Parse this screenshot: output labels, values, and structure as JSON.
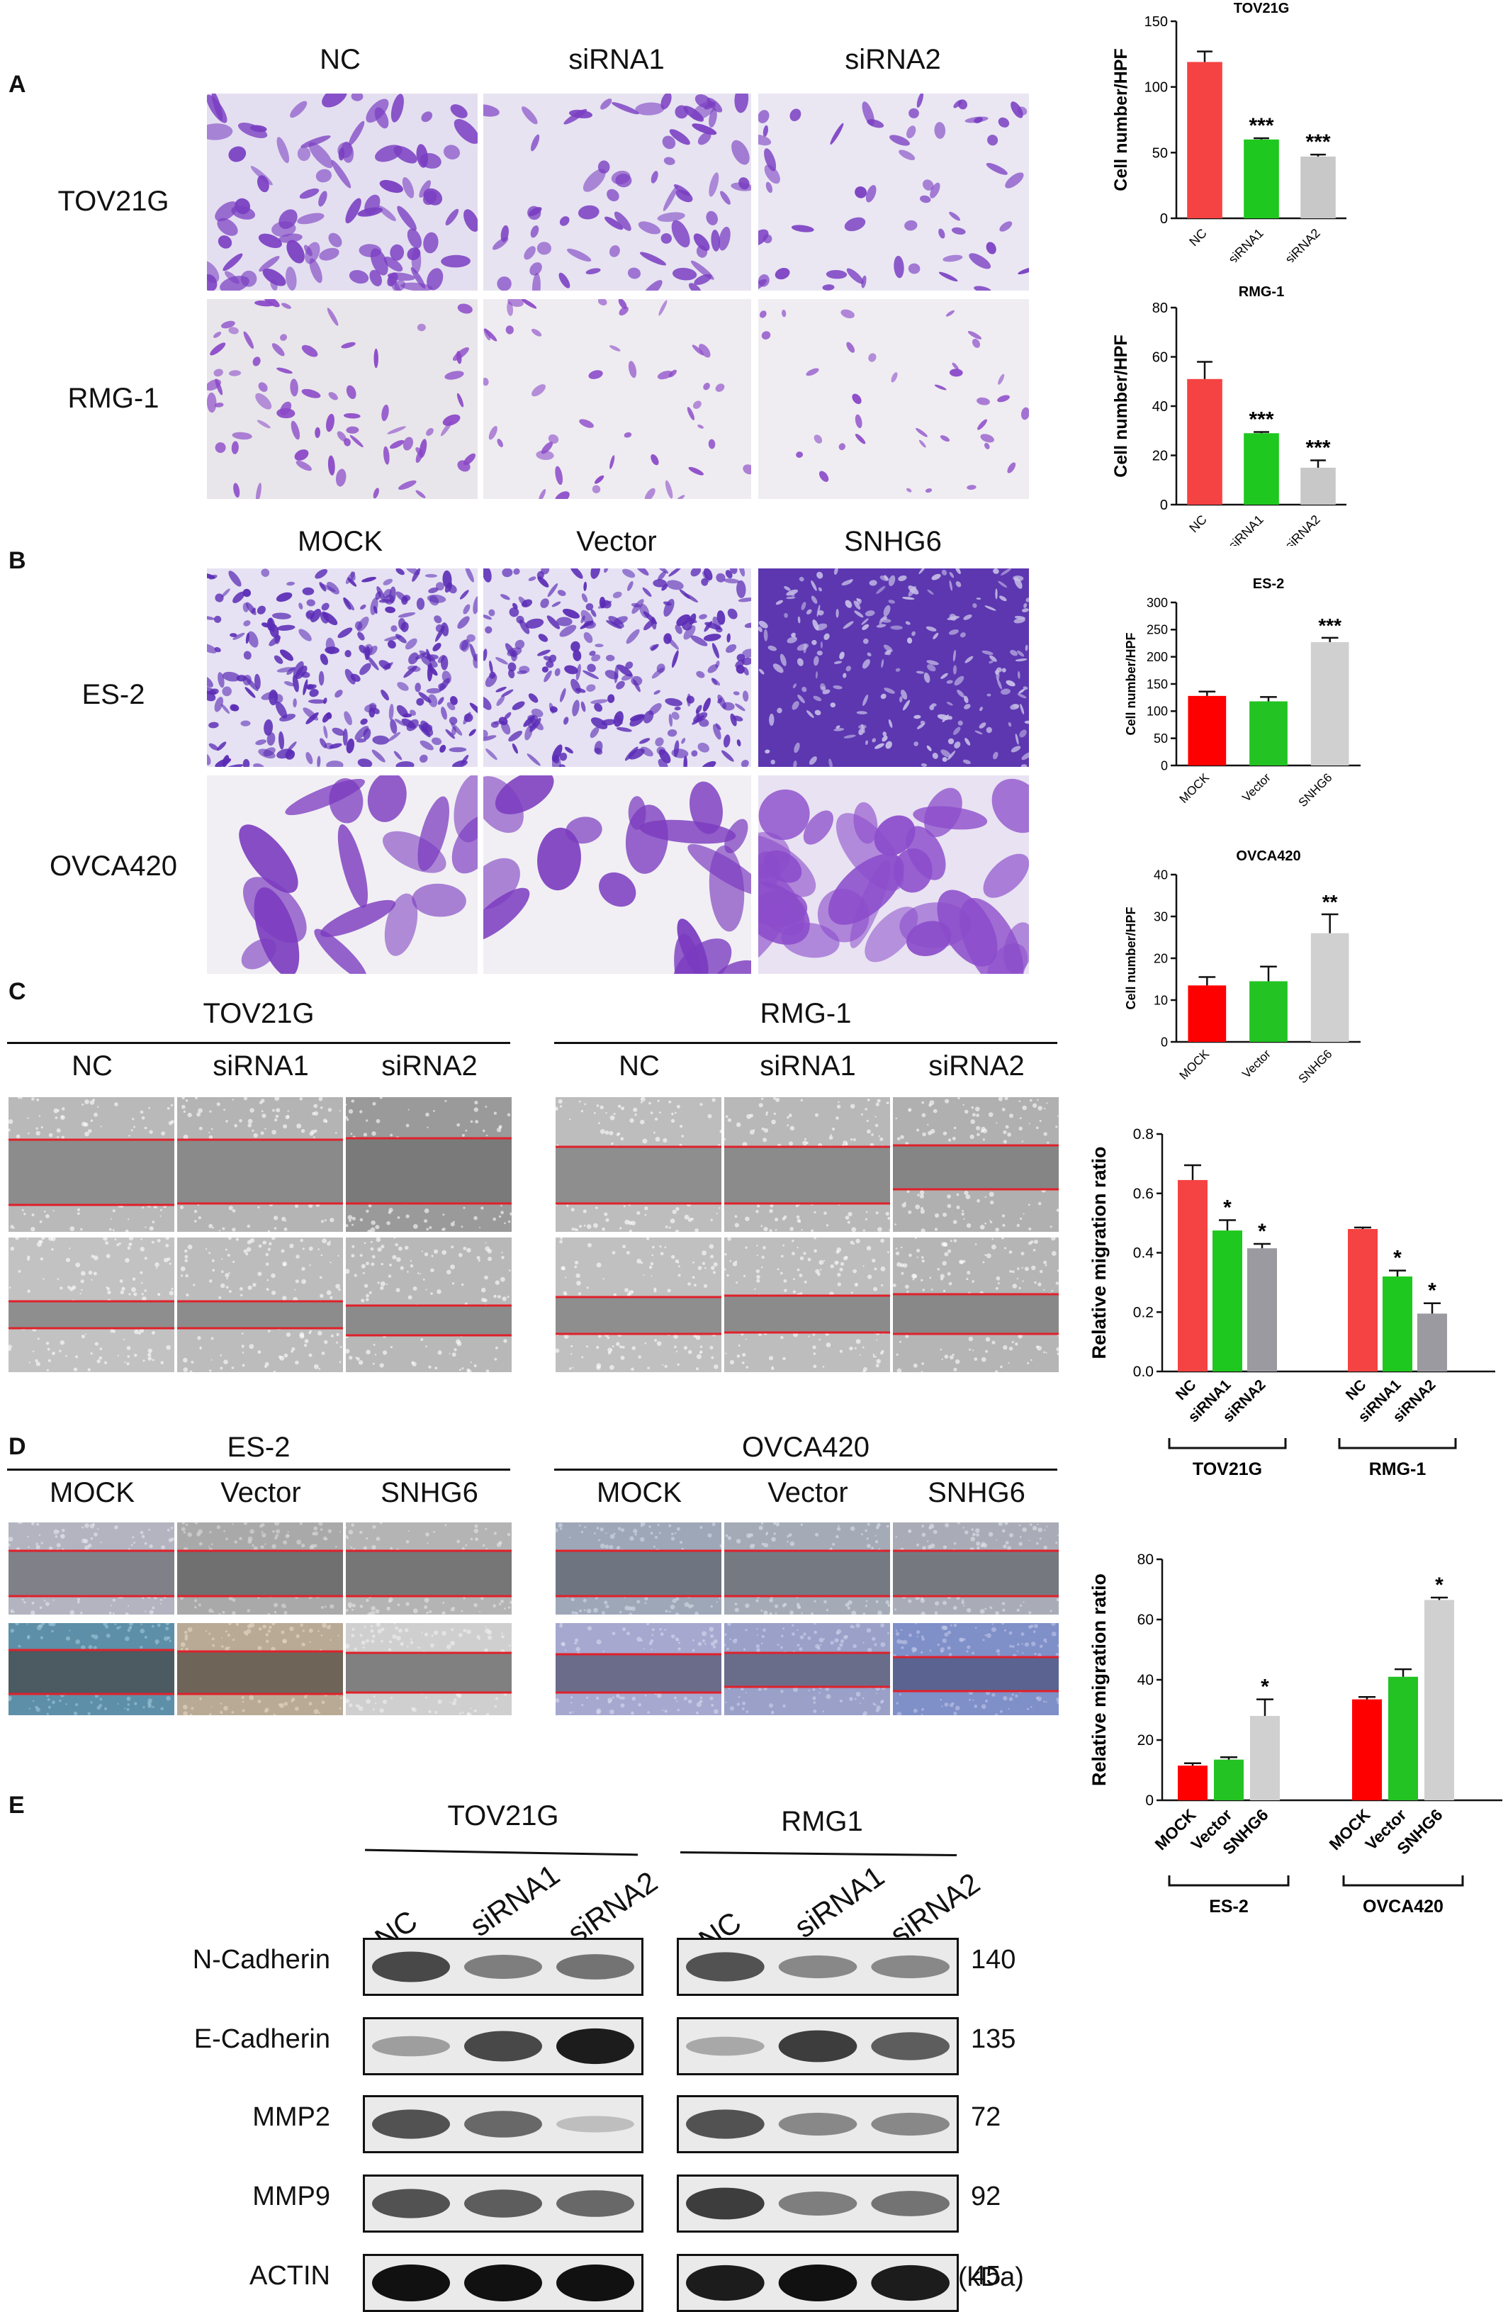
{
  "panels": {
    "a": "A",
    "b": "B",
    "c": "C",
    "d": "D",
    "e": "E"
  },
  "panelA": {
    "cols": [
      "NC",
      "siRNA1",
      "siRNA2"
    ],
    "rows": [
      "TOV21G",
      "RMG-1"
    ]
  },
  "panelB": {
    "cols": [
      "MOCK",
      "Vector",
      "SNHG6"
    ],
    "rows": [
      "ES-2",
      "OVCA420"
    ]
  },
  "panelC": {
    "groups": [
      {
        "title": "TOV21G",
        "cols": [
          "NC",
          "siRNA1",
          "siRNA2"
        ]
      },
      {
        "title": "RMG-1",
        "cols": [
          "NC",
          "siRNA1",
          "siRNA2"
        ]
      }
    ]
  },
  "panelD": {
    "groups": [
      {
        "title": "ES-2",
        "cols": [
          "MOCK",
          "Vector",
          "SNHG6"
        ]
      },
      {
        "title": "OVCA420",
        "cols": [
          "MOCK",
          "Vector",
          "SNHG6"
        ]
      }
    ]
  },
  "panelE": {
    "groups": [
      {
        "title": "TOV21G",
        "lanes": [
          "NC",
          "siRNA1",
          "siRNA2"
        ]
      },
      {
        "title": "RMG1",
        "lanes": [
          "NC",
          "siRNA1",
          "siRNA2"
        ]
      }
    ],
    "proteins": [
      "N-Cadherin",
      "E-Cadherin",
      "MMP2",
      "MMP9",
      "ACTIN"
    ],
    "sizes": [
      "140",
      "135",
      "72",
      "92",
      "45"
    ],
    "unit": "(kDa)"
  },
  "colors": {
    "red": "#f54242",
    "green": "#1ec81e",
    "gray": "#c8c8c8",
    "darkgray": "#9a9aa0",
    "purple": "#7b3bbf"
  },
  "chart_data": [
    {
      "id": "tov21g-transwell",
      "type": "bar",
      "title": "TOV21G",
      "ylabel": "Cell number/HPF",
      "categories": [
        "NC",
        "siRNA1",
        "siRNA2"
      ],
      "values": [
        119,
        60,
        47
      ],
      "errors": [
        8,
        1,
        1.5
      ],
      "ylim": [
        0,
        150
      ],
      "yticks": [
        0,
        50,
        100,
        150
      ],
      "annotations": [
        "",
        "***",
        "***"
      ],
      "colors": [
        "#f54242",
        "#1ec81e",
        "#c8c8c8"
      ]
    },
    {
      "id": "rmg1-transwell",
      "type": "bar",
      "title": "RMG-1",
      "ylabel": "Cell number/HPF",
      "categories": [
        "NC",
        "siRNA1",
        "siRNA2"
      ],
      "values": [
        51,
        29,
        15
      ],
      "errors": [
        7,
        0.5,
        3
      ],
      "ylim": [
        0,
        80
      ],
      "yticks": [
        0,
        20,
        40,
        60,
        80
      ],
      "annotations": [
        "",
        "***",
        "***"
      ],
      "colors": [
        "#f54242",
        "#1ec81e",
        "#c8c8c8"
      ]
    },
    {
      "id": "es2-transwell",
      "type": "bar",
      "title": "ES-2",
      "ylabel": "Cell number/HPF",
      "categories": [
        "MOCK",
        "Vector",
        "SNHG6"
      ],
      "values": [
        128,
        118,
        227
      ],
      "errors": [
        8,
        8,
        8
      ],
      "ylim": [
        0,
        300
      ],
      "yticks": [
        0,
        50,
        100,
        150,
        200,
        250,
        300
      ],
      "annotations": [
        "",
        "",
        "***"
      ],
      "colors": [
        "#ff0000",
        "#22c322",
        "#d0d0d0"
      ]
    },
    {
      "id": "ovca420-transwell",
      "type": "bar",
      "title": "OVCA420",
      "ylabel": "Cell number/HPF",
      "categories": [
        "MOCK",
        "Vector",
        "SNHG6"
      ],
      "values": [
        13.5,
        14.5,
        26
      ],
      "errors": [
        2,
        3.5,
        4.5
      ],
      "ylim": [
        0,
        40
      ],
      "yticks": [
        0,
        10,
        20,
        30,
        40
      ],
      "annotations": [
        "",
        "",
        "**"
      ],
      "colors": [
        "#ff0000",
        "#22c322",
        "#d0d0d0"
      ]
    },
    {
      "id": "migration-knockdown",
      "type": "bar",
      "ylabel": "Relative migration ratio",
      "groups": [
        "TOV21G",
        "RMG-1"
      ],
      "categories": [
        "NC",
        "siRNA1",
        "siRNA2"
      ],
      "series": [
        {
          "group": "TOV21G",
          "values": [
            0.645,
            0.475,
            0.415
          ],
          "errors": [
            0.05,
            0.035,
            0.015
          ],
          "annotations": [
            "",
            "*",
            "*"
          ]
        },
        {
          "group": "RMG-1",
          "values": [
            0.48,
            0.32,
            0.195
          ],
          "errors": [
            0.005,
            0.02,
            0.035
          ],
          "annotations": [
            "",
            "*",
            "*"
          ]
        }
      ],
      "ylim": [
        0,
        0.8
      ],
      "yticks": [
        0.0,
        0.2,
        0.4,
        0.6,
        0.8
      ],
      "ytick_labels": [
        "0.0",
        "0.2",
        "0.4",
        "0.6",
        "0.8"
      ],
      "colors": [
        "#f54242",
        "#1ec81e",
        "#9a9aa0"
      ]
    },
    {
      "id": "migration-overexpression",
      "type": "bar",
      "ylabel": "Relative migration ratio",
      "groups": [
        "ES-2",
        "OVCA420"
      ],
      "categories": [
        "MOCK",
        "Vector",
        "SNHG6"
      ],
      "series": [
        {
          "group": "ES-2",
          "values": [
            11.5,
            13.5,
            28
          ],
          "errors": [
            0.8,
            0.8,
            5.5
          ],
          "annotations": [
            "",
            "",
            "*"
          ]
        },
        {
          "group": "OVCA420",
          "values": [
            33.5,
            41,
            66.5
          ],
          "errors": [
            0.8,
            2.5,
            0.8
          ],
          "annotations": [
            "",
            "",
            "*"
          ]
        }
      ],
      "ylim": [
        0,
        80
      ],
      "yticks": [
        0,
        20,
        40,
        60,
        80
      ],
      "colors": [
        "#ff0000",
        "#22c322",
        "#d0d0d0"
      ]
    }
  ]
}
